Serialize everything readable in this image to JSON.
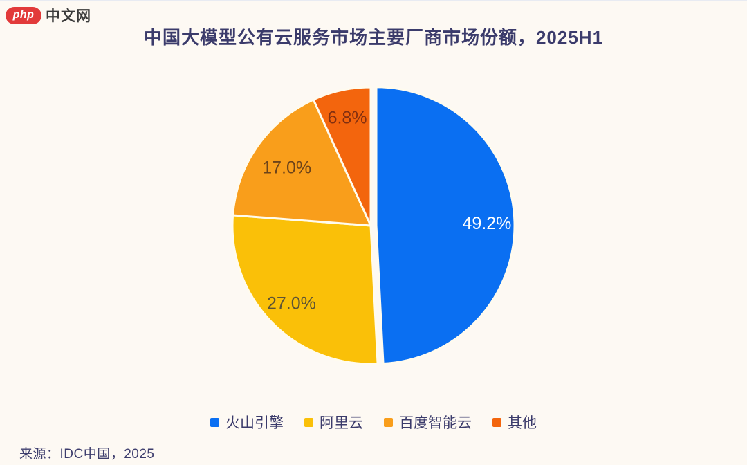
{
  "page": {
    "background_color": "#fdf9f3",
    "text_color": "#3b3b6b",
    "watermark": {
      "logo_text": "php",
      "site_text": "中文网",
      "logo_color": "#e23a3a"
    }
  },
  "chart_data": {
    "type": "pie",
    "title": "中国大模型公有云服务市场主要厂商市场份额，2025H1",
    "source": "来源：IDC中国，2025",
    "legend_position": "bottom",
    "slice_border_color": "#fffbee",
    "slices": [
      {
        "label": "火山引擎",
        "value": 49.2,
        "display": "49.2%",
        "color": "#0a6ff2",
        "label_color": "#ffffff"
      },
      {
        "label": "阿里云",
        "value": 27.0,
        "display": "27.0%",
        "color": "#fac008",
        "label_color": "#5d5335"
      },
      {
        "label": "百度智能云",
        "value": 17.0,
        "display": "17.0%",
        "color": "#f99e1b",
        "label_color": "#6d441a"
      },
      {
        "label": "其他",
        "value": 6.8,
        "display": "6.8%",
        "color": "#f3650d",
        "label_color": "#812f10"
      }
    ]
  }
}
